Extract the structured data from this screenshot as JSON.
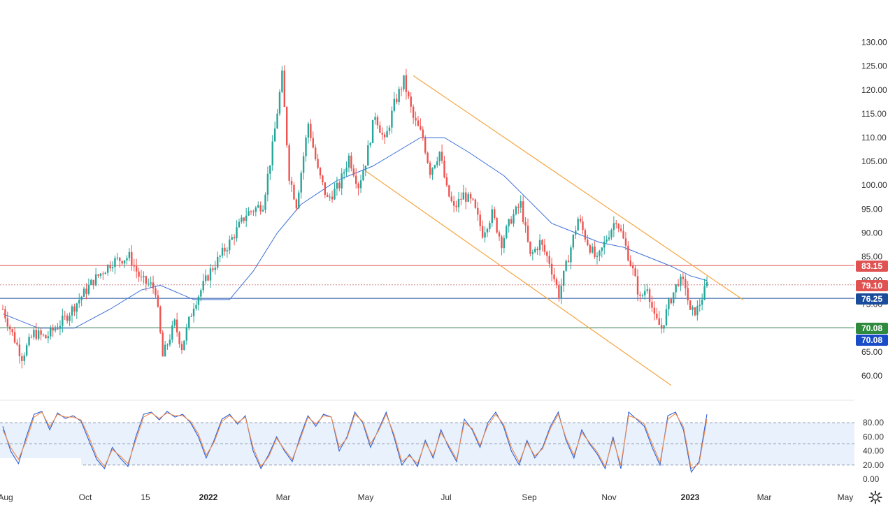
{
  "chart_data": [
    {
      "type": "candlestick",
      "title": "",
      "x_ticks": [
        "Aug",
        "Oct",
        "15",
        "2022",
        "Mar",
        "May",
        "Jul",
        "Sep",
        "Nov",
        "2023",
        "Mar",
        "May"
      ],
      "x_tick_bold": [
        "2022",
        "2023"
      ],
      "y_ticks": [
        "60.00",
        "65.00",
        "70.00",
        "75.00",
        "80.00",
        "85.00",
        "90.00",
        "95.00",
        "100.00",
        "105.00",
        "110.00",
        "115.00",
        "120.00",
        "125.00",
        "130.00"
      ],
      "ylim": [
        56,
        133
      ],
      "grid": false,
      "price_path": [
        {
          "t": 0,
          "v": 74
        },
        {
          "t": 3,
          "v": 70
        },
        {
          "t": 8,
          "v": 64
        },
        {
          "t": 13,
          "v": 69
        },
        {
          "t": 18,
          "v": 68
        },
        {
          "t": 26,
          "v": 72
        },
        {
          "t": 38,
          "v": 80
        },
        {
          "t": 46,
          "v": 84
        },
        {
          "t": 53,
          "v": 85
        },
        {
          "t": 58,
          "v": 80
        },
        {
          "t": 62,
          "v": 79
        },
        {
          "t": 64,
          "v": 78
        },
        {
          "t": 67,
          "v": 64
        },
        {
          "t": 72,
          "v": 71
        },
        {
          "t": 75,
          "v": 66
        },
        {
          "t": 80,
          "v": 75
        },
        {
          "t": 87,
          "v": 82
        },
        {
          "t": 95,
          "v": 88
        },
        {
          "t": 102,
          "v": 94
        },
        {
          "t": 109,
          "v": 96
        },
        {
          "t": 113,
          "v": 108
        },
        {
          "t": 117,
          "v": 123
        },
        {
          "t": 120,
          "v": 102
        },
        {
          "t": 123,
          "v": 96
        },
        {
          "t": 128,
          "v": 113
        },
        {
          "t": 132,
          "v": 103
        },
        {
          "t": 136,
          "v": 97
        },
        {
          "t": 141,
          "v": 100
        },
        {
          "t": 145,
          "v": 106
        },
        {
          "t": 149,
          "v": 100
        },
        {
          "t": 152,
          "v": 105
        },
        {
          "t": 156,
          "v": 115
        },
        {
          "t": 160,
          "v": 109
        },
        {
          "t": 164,
          "v": 117
        },
        {
          "t": 168,
          "v": 122
        },
        {
          "t": 172,
          "v": 114
        },
        {
          "t": 176,
          "v": 110
        },
        {
          "t": 179,
          "v": 103
        },
        {
          "t": 183,
          "v": 107
        },
        {
          "t": 186,
          "v": 99
        },
        {
          "t": 189,
          "v": 95
        },
        {
          "t": 193,
          "v": 98
        },
        {
          "t": 197,
          "v": 96
        },
        {
          "t": 201,
          "v": 90
        },
        {
          "t": 205,
          "v": 94
        },
        {
          "t": 209,
          "v": 88
        },
        {
          "t": 213,
          "v": 93
        },
        {
          "t": 217,
          "v": 96
        },
        {
          "t": 221,
          "v": 85
        },
        {
          "t": 225,
          "v": 88
        },
        {
          "t": 229,
          "v": 84
        },
        {
          "t": 233,
          "v": 77
        },
        {
          "t": 237,
          "v": 85
        },
        {
          "t": 241,
          "v": 93
        },
        {
          "t": 245,
          "v": 88
        },
        {
          "t": 249,
          "v": 84
        },
        {
          "t": 253,
          "v": 89
        },
        {
          "t": 257,
          "v": 93
        },
        {
          "t": 261,
          "v": 87
        },
        {
          "t": 264,
          "v": 82
        },
        {
          "t": 267,
          "v": 76
        },
        {
          "t": 270,
          "v": 79
        },
        {
          "t": 273,
          "v": 72
        },
        {
          "t": 276,
          "v": 70
        },
        {
          "t": 279,
          "v": 75
        },
        {
          "t": 283,
          "v": 80
        },
        {
          "t": 286,
          "v": 79
        },
        {
          "t": 288,
          "v": 73
        },
        {
          "t": 291,
          "v": 74
        },
        {
          "t": 295,
          "v": 79.1
        }
      ],
      "moving_average": [
        {
          "t": 0,
          "v": 73
        },
        {
          "t": 15,
          "v": 70
        },
        {
          "t": 30,
          "v": 70
        },
        {
          "t": 45,
          "v": 74
        },
        {
          "t": 58,
          "v": 78
        },
        {
          "t": 66,
          "v": 79
        },
        {
          "t": 80,
          "v": 76
        },
        {
          "t": 95,
          "v": 76
        },
        {
          "t": 105,
          "v": 82
        },
        {
          "t": 115,
          "v": 90
        },
        {
          "t": 125,
          "v": 96
        },
        {
          "t": 140,
          "v": 101
        },
        {
          "t": 155,
          "v": 104
        },
        {
          "t": 165,
          "v": 107
        },
        {
          "t": 175,
          "v": 110
        },
        {
          "t": 185,
          "v": 110
        },
        {
          "t": 195,
          "v": 107
        },
        {
          "t": 210,
          "v": 102
        },
        {
          "t": 220,
          "v": 97
        },
        {
          "t": 230,
          "v": 92
        },
        {
          "t": 240,
          "v": 90
        },
        {
          "t": 250,
          "v": 88
        },
        {
          "t": 260,
          "v": 87
        },
        {
          "t": 270,
          "v": 85
        },
        {
          "t": 280,
          "v": 83
        },
        {
          "t": 288,
          "v": 81
        },
        {
          "t": 295,
          "v": 80
        }
      ],
      "trend_channel": {
        "upper": [
          {
            "t": 172,
            "v": 123
          },
          {
            "t": 310,
            "v": 76
          }
        ],
        "lower": [
          {
            "t": 152,
            "v": 103
          },
          {
            "t": 280,
            "v": 58
          }
        ]
      },
      "horizontal_levels": [
        {
          "label": "83.15",
          "value": 83.15,
          "line": "solid",
          "color": "#e05252",
          "badge_color": "#e05252"
        },
        {
          "label": "79.10",
          "value": 79.1,
          "line": "dotted",
          "color": "#d08a8a",
          "badge_color": "#e05252"
        },
        {
          "label": "76.25",
          "value": 76.25,
          "line": "solid",
          "color": "#1a4c9c",
          "badge_color": "#1a4c9c"
        },
        {
          "label": "70.08",
          "value": 70.08,
          "line": "solid",
          "color": "#2e7d4f",
          "badge_color": "#2e8b3e"
        },
        {
          "label": "70.08",
          "value": 70.08,
          "line": "none",
          "color": "#1a4cc8",
          "badge_color": "#1a4cc8"
        }
      ],
      "colors": {
        "up": "#26a69a",
        "down": "#ef5350",
        "moving_average": "#3a6fd8",
        "channel": "#f5a542"
      }
    },
    {
      "type": "line",
      "title": "",
      "y_ticks": [
        "0.00",
        "20.00",
        "40.00",
        "60.00",
        "80.00"
      ],
      "ylim": [
        0,
        100
      ],
      "overbought": 80,
      "oversold": 20,
      "midline": 50,
      "series": [
        {
          "color": "#2f62d6",
          "values": [
            75,
            40,
            22,
            60,
            92,
            96,
            70,
            94,
            86,
            90,
            82,
            55,
            28,
            15,
            45,
            30,
            18,
            60,
            92,
            95,
            84,
            96,
            88,
            92,
            80,
            60,
            30,
            55,
            85,
            92,
            78,
            90,
            40,
            15,
            35,
            60,
            40,
            25,
            60,
            90,
            75,
            92,
            88,
            40,
            60,
            95,
            80,
            45,
            70,
            95,
            60,
            20,
            35,
            18,
            55,
            30,
            70,
            45,
            25,
            85,
            70,
            45,
            80,
            95,
            75,
            40,
            20,
            55,
            30,
            45,
            75,
            95,
            55,
            30,
            70,
            50,
            35,
            15,
            60,
            15,
            95,
            85,
            75,
            45,
            20,
            90,
            95,
            70,
            10,
            25,
            92
          ]
        },
        {
          "color": "#f08a4b",
          "values": [
            70,
            45,
            28,
            55,
            88,
            95,
            74,
            92,
            88,
            88,
            84,
            60,
            32,
            18,
            42,
            33,
            22,
            55,
            88,
            94,
            86,
            94,
            90,
            90,
            82,
            64,
            34,
            52,
            82,
            90,
            80,
            88,
            45,
            18,
            32,
            58,
            42,
            28,
            56,
            88,
            78,
            90,
            88,
            45,
            58,
            92,
            82,
            50,
            68,
            92,
            64,
            25,
            33,
            22,
            52,
            33,
            66,
            48,
            28,
            80,
            72,
            48,
            76,
            92,
            78,
            45,
            24,
            52,
            33,
            43,
            72,
            92,
            58,
            34,
            66,
            52,
            38,
            18,
            56,
            20,
            90,
            86,
            78,
            50,
            24,
            85,
            93,
            74,
            15,
            22,
            85
          ]
        }
      ]
    }
  ]
}
